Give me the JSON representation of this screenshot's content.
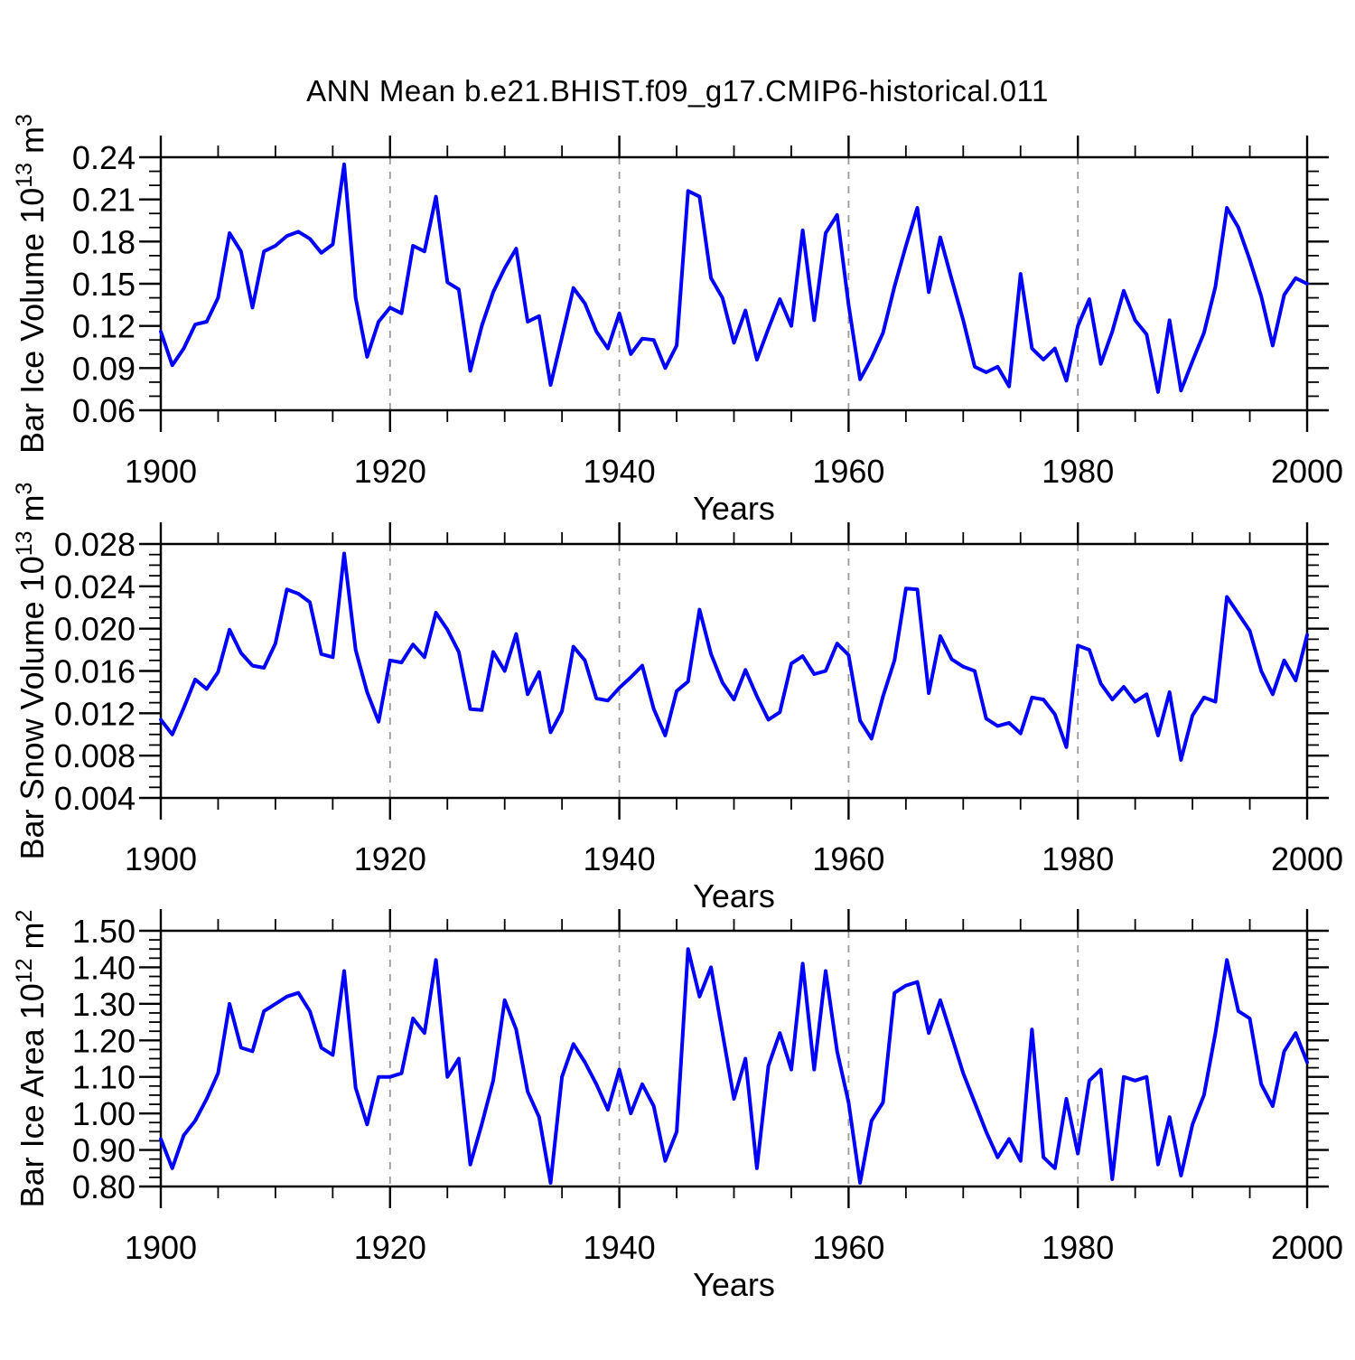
{
  "title": "ANN Mean b.e21.BHIST.f09_g17.CMIP6-historical.011",
  "colors": {
    "line": "#0000ff",
    "grid": "#999999",
    "frame": "#000000",
    "text": "#000000",
    "background": "#ffffff"
  },
  "x_axis": {
    "label": "Years",
    "min": 1900,
    "max": 2000,
    "tick_labels": [
      "1900",
      "1920",
      "1940",
      "1960",
      "1980",
      "2000"
    ],
    "tick_values": [
      1900,
      1920,
      1940,
      1960,
      1980,
      2000
    ],
    "minor_step": 5,
    "grid_lines": [
      1920,
      1940,
      1960,
      1980
    ]
  },
  "chart_data": [
    {
      "id": "ice-volume",
      "type": "line",
      "ylabel_parts": [
        [
          "Bar Ice Volume 10",
          "n"
        ],
        [
          "13",
          "s"
        ],
        [
          " m",
          "n"
        ],
        [
          "3",
          "s"
        ]
      ],
      "ylabel_plain": "Bar Ice Volume 10^13 m^3",
      "ylim": [
        0.06,
        0.24
      ],
      "ytick_labels": [
        "0.24",
        "0.21",
        "0.18",
        "0.15",
        "0.12",
        "0.09",
        "0.06"
      ],
      "ytick_values": [
        0.24,
        0.21,
        0.18,
        0.15,
        0.12,
        0.09,
        0.06
      ],
      "y_minor_step": 0.01,
      "x_start": 1900,
      "x_step": 1,
      "values": [
        0.116,
        0.092,
        0.104,
        0.121,
        0.123,
        0.14,
        0.186,
        0.173,
        0.133,
        0.173,
        0.177,
        0.184,
        0.187,
        0.182,
        0.172,
        0.178,
        0.235,
        0.14,
        0.098,
        0.123,
        0.133,
        0.129,
        0.177,
        0.173,
        0.212,
        0.151,
        0.146,
        0.088,
        0.12,
        0.144,
        0.161,
        0.175,
        0.123,
        0.127,
        0.078,
        0.112,
        0.147,
        0.136,
        0.116,
        0.104,
        0.129,
        0.1,
        0.111,
        0.11,
        0.09,
        0.106,
        0.216,
        0.212,
        0.154,
        0.14,
        0.108,
        0.131,
        0.096,
        0.118,
        0.139,
        0.12,
        0.188,
        0.124,
        0.186,
        0.199,
        0.135,
        0.082,
        0.097,
        0.115,
        0.148,
        0.177,
        0.204,
        0.144,
        0.183,
        0.153,
        0.124,
        0.091,
        0.087,
        0.091,
        0.077,
        0.157,
        0.104,
        0.096,
        0.104,
        0.081,
        0.12,
        0.139,
        0.093,
        0.116,
        0.145,
        0.124,
        0.114,
        0.073,
        0.124,
        0.074,
        0.095,
        0.115,
        0.148,
        0.204,
        0.19,
        0.167,
        0.141,
        0.106,
        0.142,
        0.154,
        0.15
      ]
    },
    {
      "id": "snow-volume",
      "type": "line",
      "ylabel_parts": [
        [
          "Bar Snow Volume 10",
          "n"
        ],
        [
          "13",
          "s"
        ],
        [
          " m",
          "n"
        ],
        [
          "3",
          "s"
        ]
      ],
      "ylabel_plain": "Bar Snow Volume 10^13 m^3",
      "ylim": [
        0.004,
        0.028
      ],
      "ytick_labels": [
        "0.028",
        "0.024",
        "0.020",
        "0.016",
        "0.012",
        "0.008",
        "0.004"
      ],
      "ytick_values": [
        0.028,
        0.024,
        0.02,
        0.016,
        0.012,
        0.008,
        0.004
      ],
      "y_minor_step": 0.001,
      "x_start": 1900,
      "x_step": 1,
      "values": [
        0.0114,
        0.01,
        0.0125,
        0.0152,
        0.0143,
        0.0159,
        0.0199,
        0.0177,
        0.0165,
        0.0163,
        0.0186,
        0.0237,
        0.0233,
        0.0225,
        0.0176,
        0.0173,
        0.0271,
        0.018,
        0.014,
        0.0112,
        0.017,
        0.0168,
        0.0185,
        0.0173,
        0.0215,
        0.0199,
        0.0178,
        0.0124,
        0.0123,
        0.0178,
        0.016,
        0.0195,
        0.0138,
        0.0159,
        0.0102,
        0.0122,
        0.0183,
        0.017,
        0.0134,
        0.0132,
        0.0144,
        0.0154,
        0.0165,
        0.0124,
        0.0099,
        0.0141,
        0.015,
        0.0218,
        0.0176,
        0.0149,
        0.0133,
        0.0161,
        0.0136,
        0.0114,
        0.0121,
        0.0167,
        0.0174,
        0.0157,
        0.016,
        0.0186,
        0.0175,
        0.0113,
        0.0096,
        0.0136,
        0.017,
        0.0238,
        0.0237,
        0.0139,
        0.0193,
        0.0171,
        0.0164,
        0.016,
        0.0115,
        0.0108,
        0.0111,
        0.0101,
        0.0135,
        0.0133,
        0.0119,
        0.0088,
        0.0184,
        0.018,
        0.0148,
        0.0133,
        0.0145,
        0.0131,
        0.0138,
        0.0099,
        0.014,
        0.0076,
        0.0118,
        0.0135,
        0.0131,
        0.023,
        0.0214,
        0.0198,
        0.016,
        0.0138,
        0.017,
        0.0151,
        0.0194
      ]
    },
    {
      "id": "ice-area",
      "type": "line",
      "ylabel_parts": [
        [
          "Bar Ice Area 10",
          "n"
        ],
        [
          "12",
          "s"
        ],
        [
          " m",
          "n"
        ],
        [
          "2",
          "s"
        ]
      ],
      "ylabel_plain": "Bar Ice Area 10^12 m^2",
      "ylim": [
        0.8,
        1.5
      ],
      "ytick_labels": [
        "1.50",
        "1.40",
        "1.30",
        "1.20",
        "1.10",
        "1.00",
        "0.90",
        "0.80"
      ],
      "ytick_values": [
        1.5,
        1.4,
        1.3,
        1.2,
        1.1,
        1.0,
        0.9,
        0.8
      ],
      "y_minor_step": 0.025,
      "x_start": 1900,
      "x_step": 1,
      "values": [
        0.93,
        0.85,
        0.94,
        0.98,
        1.04,
        1.11,
        1.3,
        1.18,
        1.17,
        1.28,
        1.3,
        1.32,
        1.33,
        1.28,
        1.18,
        1.16,
        1.39,
        1.07,
        0.97,
        1.1,
        1.1,
        1.11,
        1.26,
        1.22,
        1.42,
        1.1,
        1.15,
        0.86,
        0.97,
        1.09,
        1.31,
        1.23,
        1.06,
        0.99,
        0.81,
        1.1,
        1.19,
        1.14,
        1.08,
        1.01,
        1.12,
        1.0,
        1.08,
        1.02,
        0.87,
        0.95,
        1.45,
        1.32,
        1.4,
        1.22,
        1.04,
        1.15,
        0.85,
        1.13,
        1.22,
        1.12,
        1.41,
        1.12,
        1.39,
        1.17,
        1.03,
        0.81,
        0.98,
        1.03,
        1.33,
        1.35,
        1.36,
        1.22,
        1.31,
        1.21,
        1.11,
        1.03,
        0.95,
        0.88,
        0.93,
        0.87,
        1.23,
        0.88,
        0.85,
        1.04,
        0.89,
        1.09,
        1.12,
        0.82,
        1.1,
        1.09,
        1.1,
        0.86,
        0.99,
        0.83,
        0.97,
        1.05,
        1.22,
        1.42,
        1.28,
        1.26,
        1.08,
        1.02,
        1.17,
        1.22,
        1.14
      ]
    }
  ]
}
